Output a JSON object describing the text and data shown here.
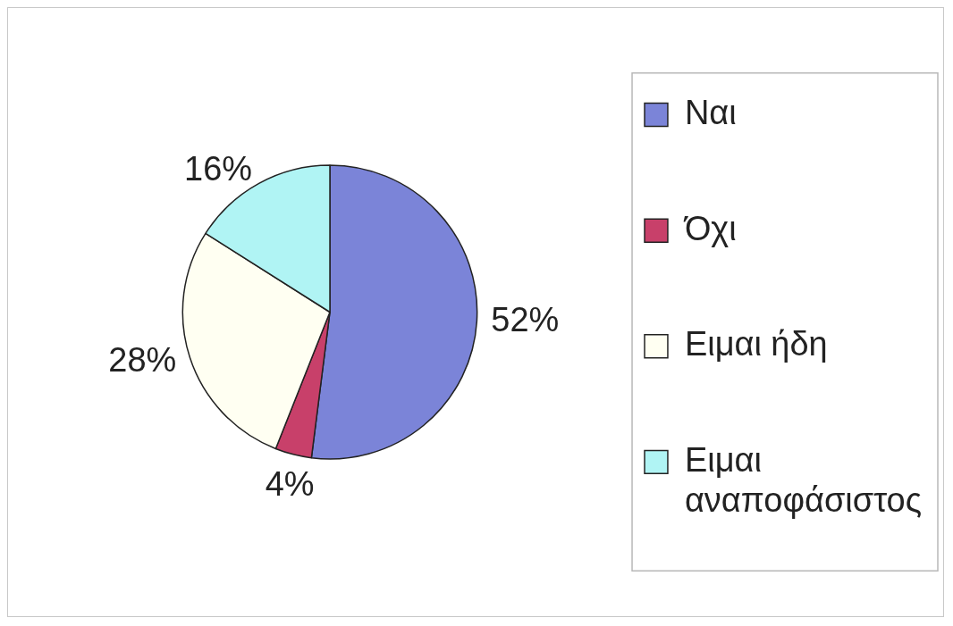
{
  "chart_data": {
    "type": "pie",
    "categories": [
      "Ναι",
      "Όχι",
      "Ειμαι ήδη",
      "Ειμαι αναποφάσιστος"
    ],
    "values": [
      52,
      4,
      28,
      16
    ],
    "colors": [
      "#7b84d8",
      "#c8406a",
      "#fffff2",
      "#b0f4f4"
    ],
    "value_labels": [
      "52%",
      "4%",
      "28%",
      "16%"
    ],
    "legend": "right"
  }
}
